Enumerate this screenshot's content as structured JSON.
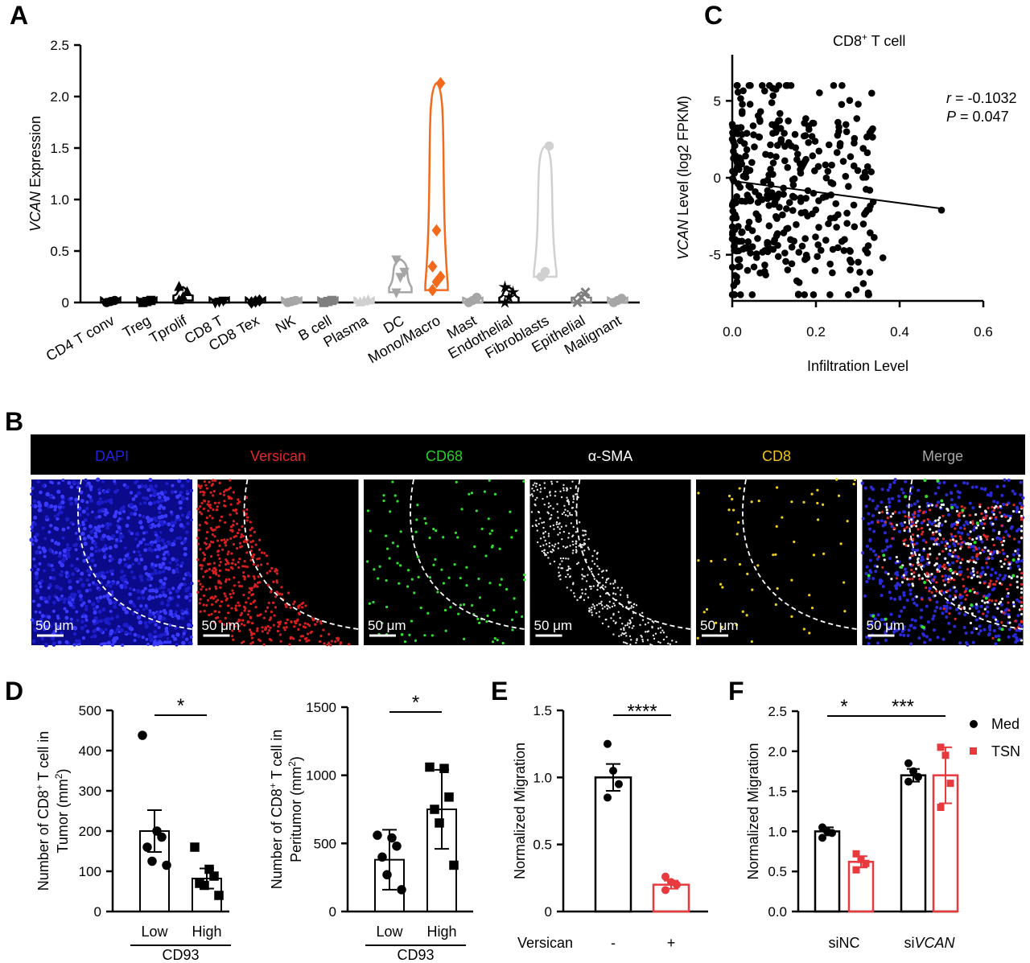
{
  "panels": {
    "A": "A",
    "B": "B",
    "C": "C",
    "D": "D",
    "E": "E",
    "F": "F"
  },
  "colors": {
    "orange": "#f26a1b",
    "red": "#e8393f",
    "grey": "#a6a6a6",
    "darkgrey": "#7f7f7f",
    "blue": "#2323d6",
    "green": "#2ecc2e",
    "yellow": "#e8c21a"
  },
  "chart_data": [
    {
      "id": "A",
      "type": "violin",
      "ylabel_italic": "VCAN",
      "ylabel_rest": " Expression",
      "ylim": [
        0,
        2.5
      ],
      "yticks": [
        "0",
        "0.5",
        "1.0",
        "1.5",
        "2.0",
        "2.5"
      ],
      "categories": [
        "CD4 T conv",
        "Treg",
        "Tprolif",
        "CD8 T",
        "CD8 Tex",
        "NK",
        "B cell",
        "Plasma",
        "DC",
        "Mono/Macro",
        "Mast",
        "Endothelial",
        "Fibroblasts",
        "Epithelial",
        "Malignant"
      ],
      "series": [
        {
          "category": "CD4 T conv",
          "values": [
            0.0,
            0.01,
            0.02
          ],
          "color": "#000000",
          "marker": "circle"
        },
        {
          "category": "Treg",
          "values": [
            0.0,
            0.01,
            0.02
          ],
          "color": "#000000",
          "marker": "square"
        },
        {
          "category": "Tprolif",
          "values": [
            0.02,
            0.05,
            0.1,
            0.15
          ],
          "color": "#000000",
          "marker": "triangle"
        },
        {
          "category": "CD8 T",
          "values": [
            0.0,
            0.01,
            0.02
          ],
          "color": "#000000",
          "marker": "tri-down"
        },
        {
          "category": "CD8 Tex",
          "values": [
            0.0,
            0.01,
            0.02
          ],
          "color": "#000000",
          "marker": "diamond"
        },
        {
          "category": "NK",
          "values": [
            0.0,
            0.01,
            0.02
          ],
          "color": "#a6a6a6",
          "marker": "circle"
        },
        {
          "category": "B cell",
          "values": [
            0.0,
            0.01,
            0.02
          ],
          "color": "#7f7f7f",
          "marker": "square"
        },
        {
          "category": "Plasma",
          "values": [
            0.0,
            0.01,
            0.02
          ],
          "color": "#d0d0d0",
          "marker": "triangle"
        },
        {
          "category": "DC",
          "values": [
            0.1,
            0.25,
            0.3,
            0.42
          ],
          "color": "#a6a6a6",
          "marker": "tri-down"
        },
        {
          "category": "Mono/Macro",
          "values": [
            0.12,
            0.2,
            0.25,
            0.35,
            0.7,
            2.13
          ],
          "color": "#f26a1b",
          "marker": "diamond"
        },
        {
          "category": "Mast",
          "values": [
            0.0,
            0.02,
            0.05
          ],
          "color": "#a6a6a6",
          "marker": "circle"
        },
        {
          "category": "Endothelial",
          "values": [
            0.0,
            0.05,
            0.1,
            0.15
          ],
          "color": "#000000",
          "marker": "star"
        },
        {
          "category": "Fibroblasts",
          "values": [
            0.25,
            0.3,
            1.52
          ],
          "color": "#d0d0d0",
          "marker": "circle"
        },
        {
          "category": "Epithelial",
          "values": [
            0.0,
            0.05,
            0.1
          ],
          "color": "#7f7f7f",
          "marker": "x"
        },
        {
          "category": "Malignant",
          "values": [
            0.0,
            0.02,
            0.04
          ],
          "color": "#a6a6a6",
          "marker": "circle"
        }
      ]
    },
    {
      "id": "C",
      "type": "scatter",
      "title_pre": "CD8",
      "title_sup": "+",
      "title_post": " T cell",
      "xlabel": "Infiltration Level",
      "ylabel_italic": "VCAN",
      "ylabel_rest": " Level (log2 FPKM)",
      "xlim": [
        0,
        0.6
      ],
      "ylim": [
        -8,
        8
      ],
      "xticks": [
        "0.0",
        "0.2",
        "0.4",
        "0.6"
      ],
      "yticks": [
        "5",
        "0",
        "-5"
      ],
      "stat_r_label": "r",
      "stat_r_value": " = -0.1032",
      "stat_p_label": "P",
      "stat_p_value": " = 0.047",
      "regression": {
        "x": [
          0,
          0.5
        ],
        "y": [
          -0.2,
          -2.0
        ]
      },
      "extreme_points": [
        {
          "x": 0.5,
          "y": -2.1
        },
        {
          "x": 0.36,
          "y": -5.2
        },
        {
          "x": 0.005,
          "y": -7.6
        },
        {
          "x": 0.04,
          "y": 6.0
        }
      ]
    },
    {
      "id": "D1",
      "type": "bar",
      "ylabel_line1": "Number of CD8",
      "ylabel_sup": "+",
      "ylabel_line1b": " T cell in",
      "ylabel_line2": "Tumor (mm",
      "ylabel_sup2": "2",
      "ylabel_end": ")",
      "ylim": [
        0,
        500
      ],
      "yticks": [
        "0",
        "100",
        "200",
        "300",
        "400",
        "500"
      ],
      "categories": [
        "Low",
        "High"
      ],
      "group_label": "CD93",
      "sig": "*",
      "values": [
        200,
        82
      ],
      "errors": [
        52,
        25
      ],
      "points": [
        [
          438,
          200,
          185,
          160,
          125,
          115
        ],
        [
          160,
          105,
          88,
          70,
          65,
          40
        ]
      ],
      "markers": [
        "circle",
        "square"
      ]
    },
    {
      "id": "D2",
      "type": "bar",
      "ylabel_line1": "Number of CD8",
      "ylabel_sup": "+",
      "ylabel_line1b": " T cell in",
      "ylabel_line2": "Peritumor (mm",
      "ylabel_sup2": "2",
      "ylabel_end": ")",
      "ylim": [
        0,
        1500
      ],
      "yticks": [
        "0",
        "500",
        "1000",
        "1500"
      ],
      "categories": [
        "Low",
        "High"
      ],
      "group_label": "CD93",
      "sig": "*",
      "values": [
        380,
        750
      ],
      "errors": [
        220,
        290
      ],
      "points": [
        [
          560,
          540,
          480,
          400,
          270,
          160
        ],
        [
          1060,
          1050,
          840,
          750,
          650,
          340
        ]
      ],
      "markers": [
        "circle",
        "square"
      ]
    },
    {
      "id": "E",
      "type": "bar",
      "ylabel": "Normalized Migration",
      "ylim": [
        0,
        1.5
      ],
      "yticks": [
        "0",
        "0.5",
        "1.0",
        "1.5"
      ],
      "row_label": "Versican",
      "categories": [
        "-",
        "+"
      ],
      "sig": "****",
      "values": [
        1.0,
        0.2
      ],
      "errors": [
        0.1,
        0.03
      ],
      "points": [
        [
          1.25,
          1.05,
          0.95,
          0.85
        ],
        [
          0.26,
          0.22,
          0.2,
          0.16
        ]
      ],
      "colors": [
        "#000000",
        "#e8393f"
      ]
    },
    {
      "id": "F",
      "type": "bar",
      "ylabel": "Normalized Migration",
      "ylim": [
        0,
        2.5
      ],
      "yticks": [
        "0.0",
        "0.5",
        "1.0",
        "1.5",
        "2.0",
        "2.5"
      ],
      "groups": [
        "siNC",
        "siVCAN"
      ],
      "series": [
        {
          "name": "Med",
          "values": [
            1.0,
            1.7
          ],
          "errors": [
            0.05,
            0.08
          ]
        },
        {
          "name": "TSN",
          "values": [
            0.62,
            1.7
          ],
          "errors": [
            0.07,
            0.35
          ]
        }
      ],
      "points": [
        [
          1.05,
          1.0,
          0.98,
          0.92
        ],
        [
          0.72,
          0.65,
          0.6,
          0.52
        ],
        [
          1.85,
          1.75,
          1.68,
          1.62
        ],
        [
          2.05,
          1.95,
          1.6,
          1.3
        ]
      ],
      "sig1": "*",
      "sig2": "***",
      "legend_med": "Med",
      "legend_tsn": "TSN"
    }
  ],
  "panelB": {
    "channels": [
      {
        "label": "DAPI",
        "color": "#2020e0"
      },
      {
        "label": "Versican",
        "color": "#e8242b"
      },
      {
        "label": "CD68",
        "color": "#2ecc2e"
      },
      {
        "label": "α-SMA",
        "color": "#ffffff"
      },
      {
        "label": "CD8",
        "color": "#f0c419"
      },
      {
        "label": "Merge",
        "color": "#a6a6a6"
      }
    ],
    "scalebar": "50 μm"
  }
}
